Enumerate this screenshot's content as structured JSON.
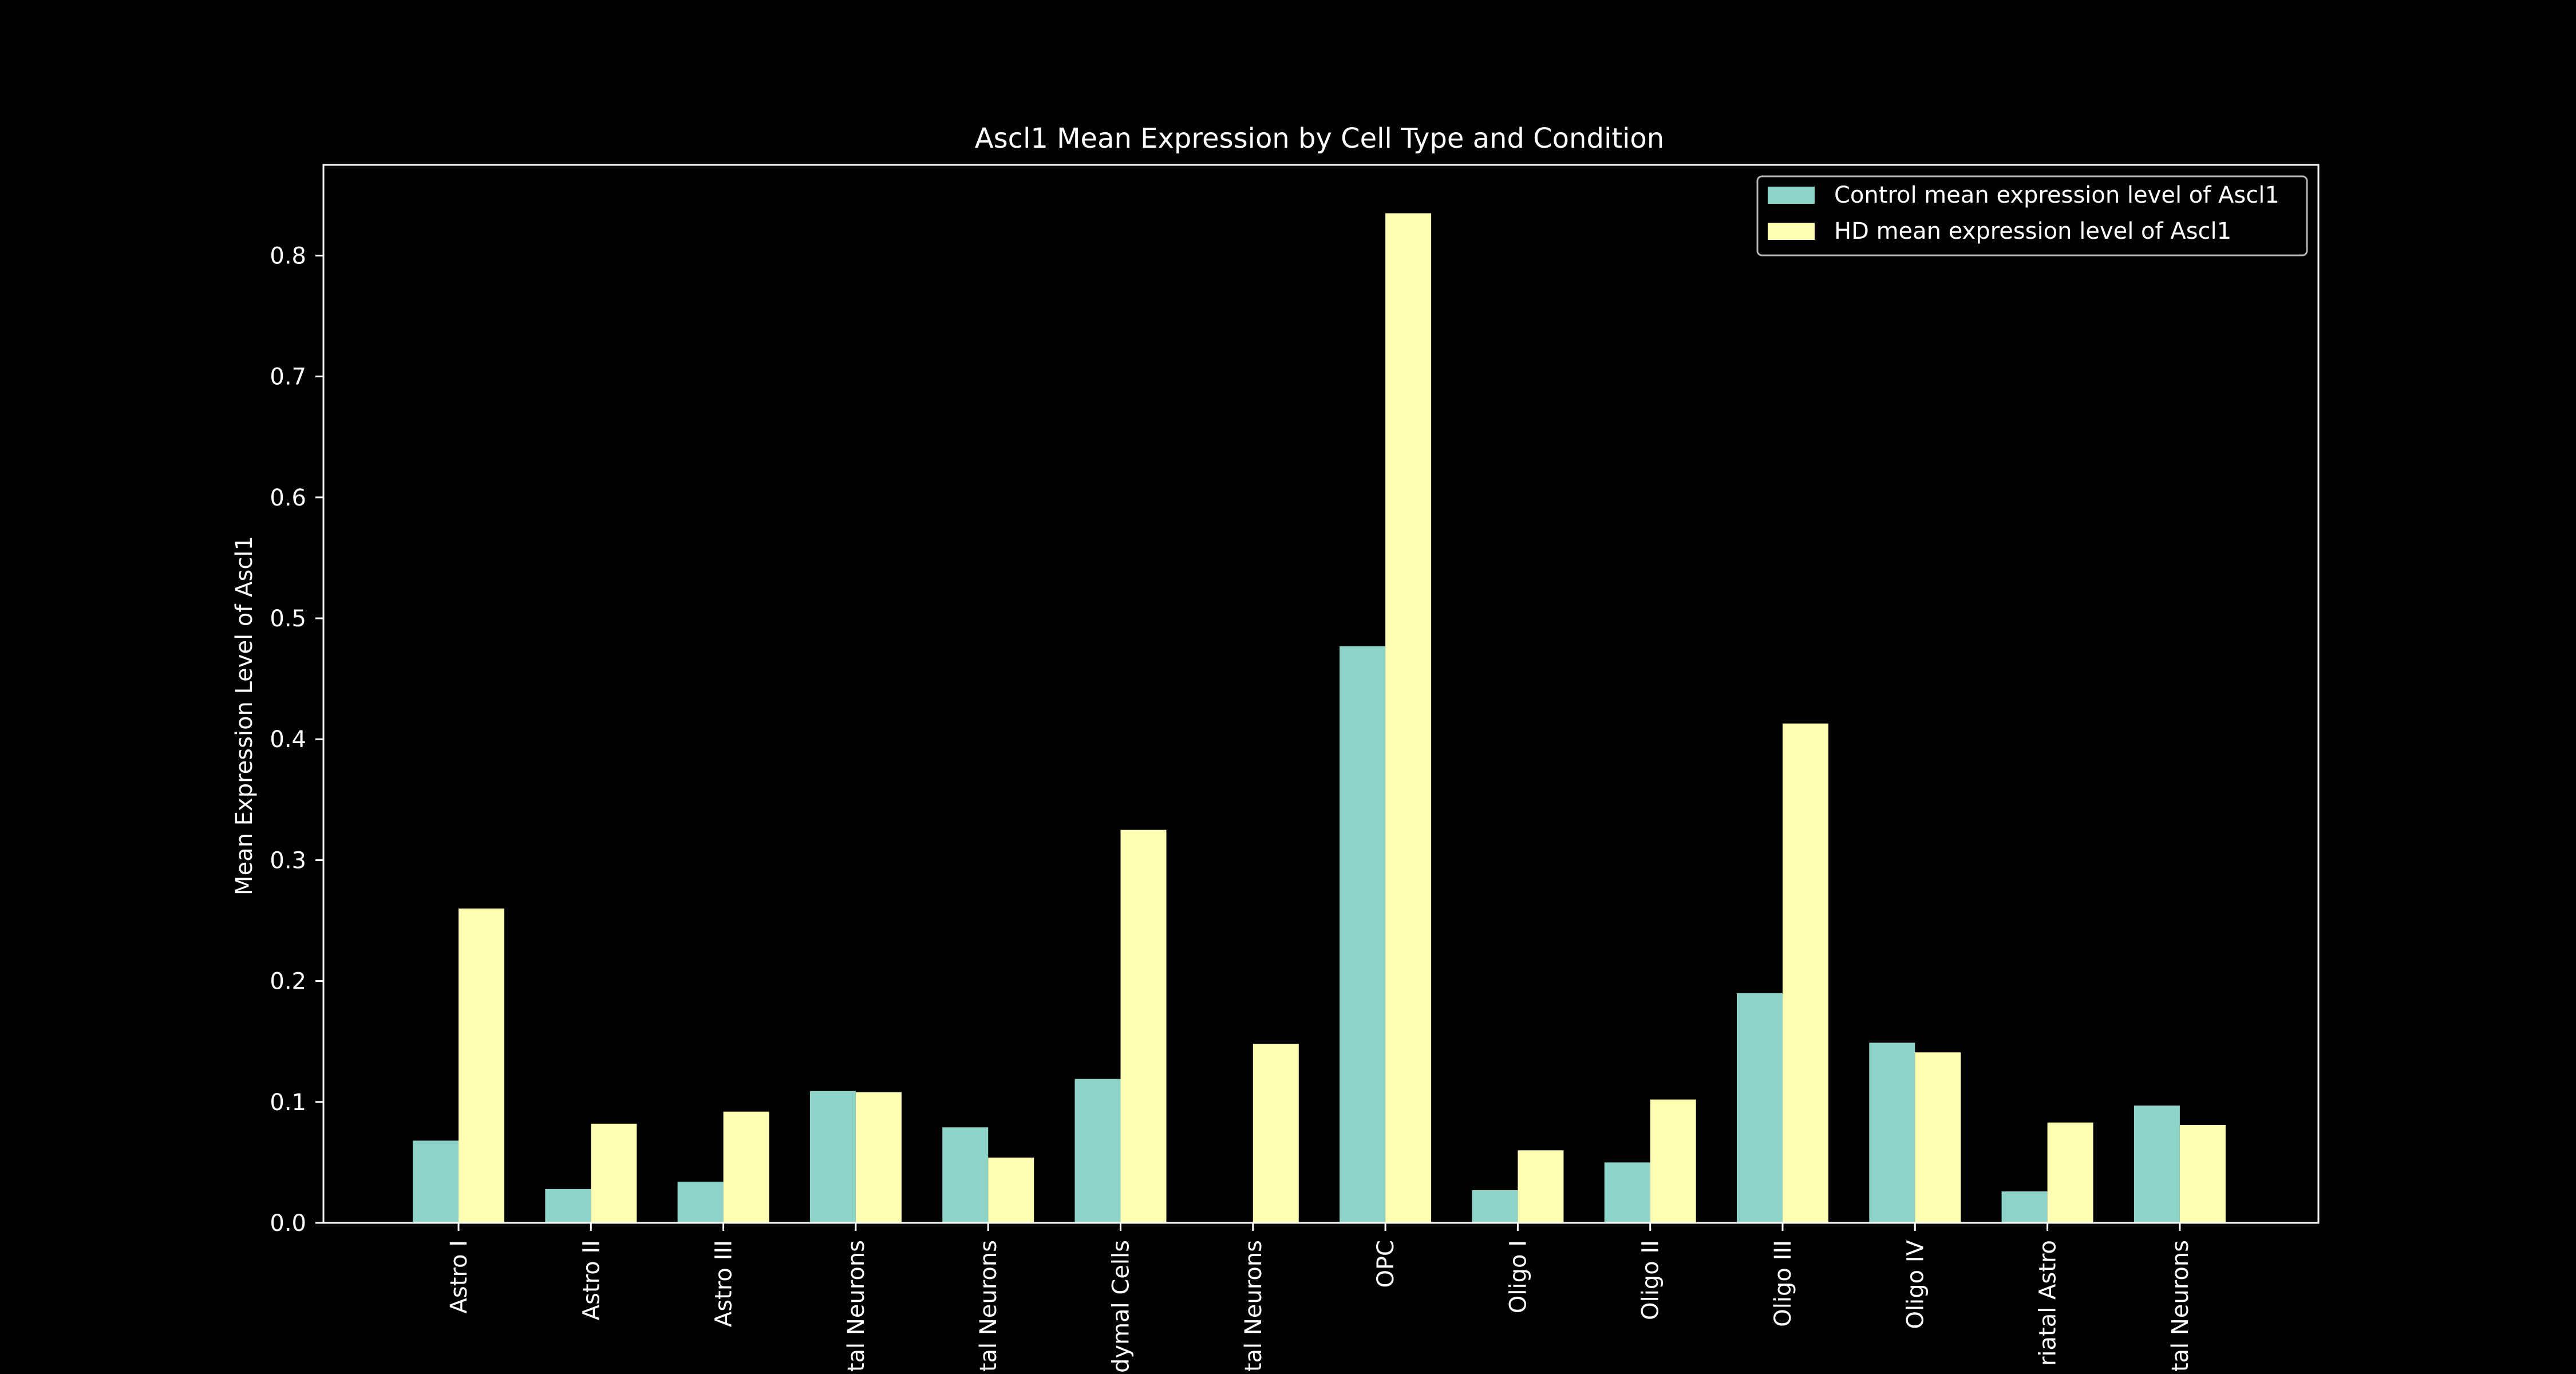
{
  "chart_data": {
    "type": "bar",
    "title": "Ascl1 Mean Expression by Cell Type and Condition",
    "xlabel": "",
    "ylabel": "Mean Expression Level of Ascl1",
    "ylim": [
      0,
      0.875
    ],
    "yticks": [
      "0.0",
      "0.1",
      "0.2",
      "0.3",
      "0.4",
      "0.5",
      "0.6",
      "0.7",
      "0.8"
    ],
    "categories": [
      "Astro I",
      "Astro II",
      "Astro III",
      "Cortical Neurons",
      "Interneurons / Cortical Neurons",
      "Ependymal Cells",
      "Interneurons / Striatal Neurons",
      "OPC",
      "Oligo I",
      "Oligo II",
      "Oligo III",
      "Oligo IV",
      "Striatal Astro",
      "Striatal Neurons"
    ],
    "category_labels_visible": [
      "Astro I",
      "Astro II",
      "Astro III",
      "tal Neurons",
      "tal Neurons",
      "dymal Cells",
      "tal Neurons",
      "OPC",
      "Oligo I",
      "Oligo II",
      "Oligo III",
      "Oligo IV",
      "riatal Astro",
      "tal Neurons"
    ],
    "series": [
      {
        "name": "Control mean expression level of Ascl1",
        "color": "#8dd3c7",
        "values": [
          0.068,
          0.028,
          0.034,
          0.109,
          0.079,
          0.119,
          0.0,
          0.477,
          0.027,
          0.05,
          0.19,
          0.149,
          0.026,
          0.097
        ]
      },
      {
        "name": "HD mean expression level of Ascl1",
        "color": "#ffffb3",
        "values": [
          0.26,
          0.082,
          0.092,
          0.108,
          0.054,
          0.325,
          0.148,
          0.835,
          0.06,
          0.102,
          0.413,
          0.141,
          0.083,
          0.081
        ]
      }
    ],
    "grid": false,
    "legend_position": "top-right"
  },
  "colors": {
    "background": "#000000",
    "foreground": "#ffffff"
  }
}
